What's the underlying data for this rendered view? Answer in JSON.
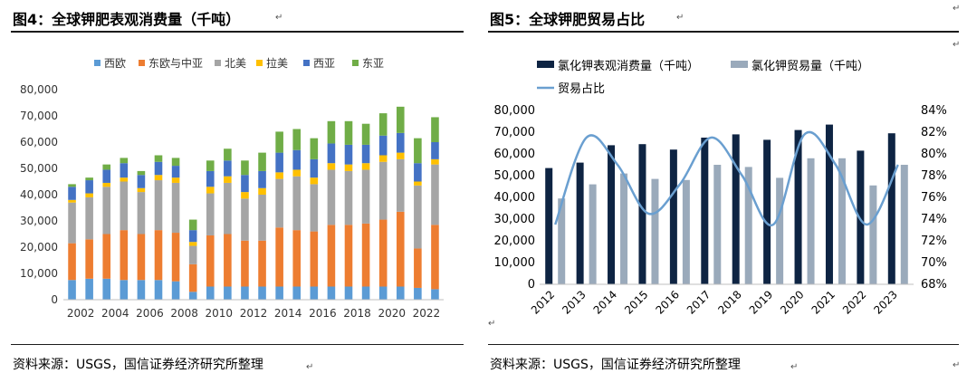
{
  "figures": [
    {
      "title": "图4：全球钾肥表观消费量（千吨）",
      "source": "资料来源：USGS，国信证券经济研究所整理",
      "chart_data": {
        "type": "bar",
        "stacked": true,
        "title": "",
        "xlabel": "",
        "ylabel": "",
        "ylim": [
          0,
          80000
        ],
        "yticks": [
          "0",
          "10,000",
          "20,000",
          "30,000",
          "40,000",
          "50,000",
          "60,000",
          "70,000",
          "80,000"
        ],
        "categories": [
          "2002",
          "2003",
          "2004",
          "2005",
          "2006",
          "2007",
          "2008",
          "2009",
          "2010",
          "2011",
          "2012",
          "2013",
          "2014",
          "2015",
          "2016",
          "2017",
          "2018",
          "2019",
          "2020",
          "2021",
          "2022",
          "2023"
        ],
        "xtick_labels": [
          "2002",
          "",
          "2004",
          "",
          "2006",
          "",
          "2008",
          "",
          "2010",
          "",
          "2012",
          "",
          "2014",
          "",
          "2016",
          "",
          "2018",
          "",
          "2020",
          "",
          "2022",
          ""
        ],
        "legend_position": "top",
        "grid": false,
        "series": [
          {
            "name": "西欧",
            "color": "#5b9bd5",
            "values": [
              7500,
              8000,
              8000,
              7500,
              7500,
              7500,
              7000,
              3000,
              5000,
              5000,
              5000,
              5000,
              5000,
              5000,
              5000,
              5000,
              5000,
              5000,
              5000,
              5000,
              4500,
              4000
            ]
          },
          {
            "name": "东欧与中亚",
            "color": "#ed7d31",
            "values": [
              14000,
              15000,
              17000,
              19000,
              17500,
              19000,
              18500,
              10500,
              19500,
              20000,
              17500,
              17500,
              22500,
              21500,
              21000,
              23500,
              23500,
              24000,
              25500,
              28500,
              15000,
              24500
            ]
          },
          {
            "name": "北美",
            "color": "#a5a5a5",
            "values": [
              15500,
              16000,
              18000,
              18500,
              16000,
              19000,
              19000,
              7000,
              16000,
              19500,
              16000,
              17500,
              18500,
              20500,
              18000,
              21000,
              20500,
              20500,
              22000,
              20000,
              24000,
              23000
            ]
          },
          {
            "name": "拉美",
            "color": "#ffc000",
            "values": [
              1000,
              1500,
              1500,
              1500,
              1500,
              2000,
              2000,
              1500,
              2500,
              2500,
              2500,
              2500,
              2500,
              2500,
              2500,
              2500,
              2500,
              2500,
              2500,
              2500,
              1500,
              2000
            ]
          },
          {
            "name": "西亚",
            "color": "#4472c4",
            "values": [
              5000,
              5000,
              5000,
              5500,
              5000,
              5000,
              4500,
              4500,
              6000,
              6000,
              6500,
              6500,
              7500,
              7500,
              7000,
              7500,
              7500,
              7000,
              7500,
              7500,
              7000,
              6500
            ]
          },
          {
            "name": "东亚",
            "color": "#70ad47",
            "values": [
              1000,
              1000,
              2000,
              2000,
              1500,
              2500,
              3000,
              4000,
              4000,
              4500,
              5500,
              7000,
              8000,
              8000,
              8000,
              8500,
              9000,
              8000,
              8500,
              10000,
              9500,
              9500
            ]
          }
        ]
      }
    },
    {
      "title": "图5：全球钾肥贸易占比",
      "source": "资料来源：USGS，国信证券经济研究所整理",
      "chart_data": {
        "type": "bar",
        "combo": "bar+line",
        "title": "",
        "xlabel": "",
        "ylabel": "",
        "ylim": [
          0,
          80000
        ],
        "y2lim": [
          0.68,
          0.84
        ],
        "yticks": [
          "0",
          "10,000",
          "20,000",
          "30,000",
          "40,000",
          "50,000",
          "60,000",
          "70,000",
          "80,000"
        ],
        "y2ticks": [
          "68%",
          "70%",
          "72%",
          "74%",
          "76%",
          "78%",
          "80%",
          "82%",
          "84%"
        ],
        "categories": [
          "2012",
          "2013",
          "2014",
          "2015",
          "2016",
          "2017",
          "2018",
          "2019",
          "2020",
          "2021",
          "2022",
          "2023"
        ],
        "legend_position": "top",
        "grid": false,
        "series": [
          {
            "name": "氯化钾表观消费量（千吨）",
            "kind": "bar",
            "axis": "left",
            "color": "#0e2443",
            "values": [
              53500,
              56000,
              64000,
              64500,
              62000,
              67500,
              69000,
              66500,
              71000,
              73500,
              61500,
              69500
            ]
          },
          {
            "name": "氯化钾贸易量（千吨）",
            "kind": "bar",
            "axis": "left",
            "color": "#9aaabb",
            "values": [
              39500,
              46000,
              51000,
              48500,
              48000,
              55000,
              54000,
              49000,
              58000,
              58000,
              45500,
              55000
            ]
          },
          {
            "name": "贸易占比",
            "kind": "line",
            "axis": "right",
            "color": "#6a9fd0",
            "values": [
              0.735,
              0.815,
              0.79,
              0.745,
              0.772,
              0.815,
              0.78,
              0.735,
              0.818,
              0.79,
              0.735,
              0.79
            ]
          }
        ]
      }
    }
  ]
}
